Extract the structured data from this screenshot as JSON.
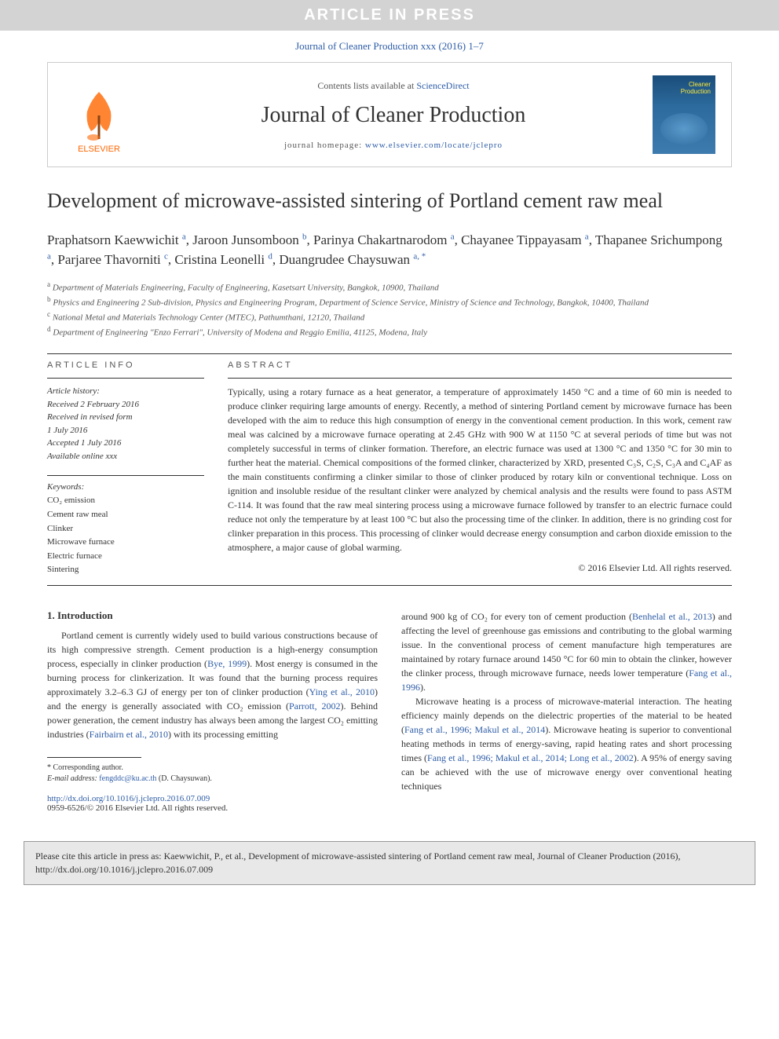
{
  "banner": {
    "text": "ARTICLE IN PRESS"
  },
  "journal_ref": "Journal of Cleaner Production xxx (2016) 1–7",
  "header": {
    "publisher": "ELSEVIER",
    "contents_prefix": "Contents lists available at ",
    "contents_link": "ScienceDirect",
    "journal_title": "Journal of Cleaner Production",
    "homepage_label": "journal homepage: ",
    "homepage_url": "www.elsevier.com/locate/jclepro",
    "cover_title": "Cleaner Production"
  },
  "article": {
    "title": "Development of microwave-assisted sintering of Portland cement raw meal",
    "authors_html": "Praphatsorn Kaewwichit <sup>a</sup>, Jaroon Junsomboon <sup>b</sup>, Parinya Chakartnarodom <sup>a</sup>, Chayanee Tippayasam <sup>a</sup>, Thapanee Srichumpong <sup>a</sup>, Parjaree Thavorniti <sup>c</sup>, Cristina Leonelli <sup>d</sup>, Duangrudee Chaysuwan <sup>a, *</sup>",
    "affiliations": [
      {
        "sup": "a",
        "text": "Department of Materials Engineering, Faculty of Engineering, Kasetsart University, Bangkok, 10900, Thailand"
      },
      {
        "sup": "b",
        "text": "Physics and Engineering 2 Sub-division, Physics and Engineering Program, Department of Science Service, Ministry of Science and Technology, Bangkok, 10400, Thailand"
      },
      {
        "sup": "c",
        "text": "National Metal and Materials Technology Center (MTEC), Pathumthani, 12120, Thailand"
      },
      {
        "sup": "d",
        "text": "Department of Engineering \"Enzo Ferrari\", University of Modena and Reggio Emilia, 41125, Modena, Italy"
      }
    ]
  },
  "info": {
    "article_info_label": "ARTICLE INFO",
    "abstract_label": "ABSTRACT",
    "history_label": "Article history:",
    "history": [
      "Received 2 February 2016",
      "Received in revised form",
      "1 July 2016",
      "Accepted 1 July 2016",
      "Available online xxx"
    ],
    "keywords_label": "Keywords:",
    "keywords": [
      "CO₂ emission",
      "Cement raw meal",
      "Clinker",
      "Microwave furnace",
      "Electric furnace",
      "Sintering"
    ],
    "abstract": "Typically, using a rotary furnace as a heat generator, a temperature of approximately 1450 °C and a time of 60 min is needed to produce clinker requiring large amounts of energy. Recently, a method of sintering Portland cement by microwave furnace has been developed with the aim to reduce this high consumption of energy in the conventional cement production. In this work, cement raw meal was calcined by a microwave furnace operating at 2.45 GHz with 900 W at 1150 °C at several periods of time but was not completely successful in terms of clinker formation. Therefore, an electric furnace was used at 1300 °C and 1350 °C for 30 min to further heat the material. Chemical compositions of the formed clinker, characterized by XRD, presented C₃S, C₂S, C₃A and C₄AF as the main constituents confirming a clinker similar to those of clinker produced by rotary kiln or conventional technique. Loss on ignition and insoluble residue of the resultant clinker were analyzed by chemical analysis and the results were found to pass ASTM C-114. It was found that the raw meal sintering process using a microwave furnace followed by transfer to an electric furnace could reduce not only the temperature by at least 100 °C but also the processing time of the clinker. In addition, there is no grinding cost for clinker preparation in this process. This processing of clinker would decrease energy consumption and carbon dioxide emission to the atmosphere, a major cause of global warming.",
    "copyright": "© 2016 Elsevier Ltd. All rights reserved."
  },
  "body": {
    "section_heading": "1. Introduction",
    "col1_p1_pre": "Portland cement is currently widely used to build various constructions because of its high compressive strength. Cement production is a high-energy consumption process, especially in clinker production (",
    "col1_p1_ref1": "Bye, 1999",
    "col1_p1_mid1": "). Most energy is consumed in the burning process for clinkerization. It was found that the burning process requires approximately 3.2–6.3 GJ of energy per ton of clinker production (",
    "col1_p1_ref2": "Ying et al., 2010",
    "col1_p1_mid2": ") and the energy is generally associated with CO₂ emission (",
    "col1_p1_ref3": "Parrott, 2002",
    "col1_p1_mid3": "). Behind power generation, the cement industry has always been among the largest CO₂ emitting industries (",
    "col1_p1_ref4": "Fairbairn et al., 2010",
    "col1_p1_post": ") with its processing emitting",
    "col2_p1_pre": "around 900 kg of CO₂ for every ton of cement production (",
    "col2_p1_ref1": "Benhelal et al., 2013",
    "col2_p1_mid1": ") and affecting the level of greenhouse gas emissions and contributing to the global warming issue. In the conventional process of cement manufacture high temperatures are maintained by rotary furnace around 1450 °C for 60 min to obtain the clinker, however the clinker process, through microwave furnace, needs lower temperature (",
    "col2_p1_ref2": "Fang et al., 1996",
    "col2_p1_post": ").",
    "col2_p2_pre": "Microwave heating is a process of microwave-material interaction. The heating efficiency mainly depends on the dielectric properties of the material to be heated (",
    "col2_p2_ref1": "Fang et al., 1996; Makul et al., 2014",
    "col2_p2_mid1": "). Microwave heating is superior to conventional heating methods in terms of energy-saving, rapid heating rates and short processing times (",
    "col2_p2_ref2": "Fang et al., 1996; Makul et al., 2014; Long et al., 2002",
    "col2_p2_post": "). A 95% of energy saving can be achieved with the use of microwave energy over conventional heating techniques"
  },
  "footnote": {
    "corresponding": "* Corresponding author.",
    "email_label": "E-mail address: ",
    "email": "fengddc@ku.ac.th",
    "email_who": " (D. Chaysuwan)."
  },
  "doi": {
    "url": "http://dx.doi.org/10.1016/j.jclepro.2016.07.009",
    "issn_line": "0959-6526/© 2016 Elsevier Ltd. All rights reserved."
  },
  "cite_box": "Please cite this article in press as: Kaewwichit, P., et al., Development of microwave-assisted sintering of Portland cement raw meal, Journal of Cleaner Production (2016), http://dx.doi.org/10.1016/j.jclepro.2016.07.009",
  "colors": {
    "link": "#2d5ca6",
    "banner_bg": "#d3d3d3",
    "banner_fg": "#ffffff",
    "elsevier_orange": "#ff6600",
    "cite_bg": "#e8e8e8",
    "rule": "#333333"
  },
  "typography": {
    "body_font": "Georgia, Times New Roman, serif",
    "title_fontsize_pt": 20,
    "journal_title_fontsize_pt": 21,
    "body_fontsize_pt": 9,
    "abstract_fontsize_pt": 9
  }
}
